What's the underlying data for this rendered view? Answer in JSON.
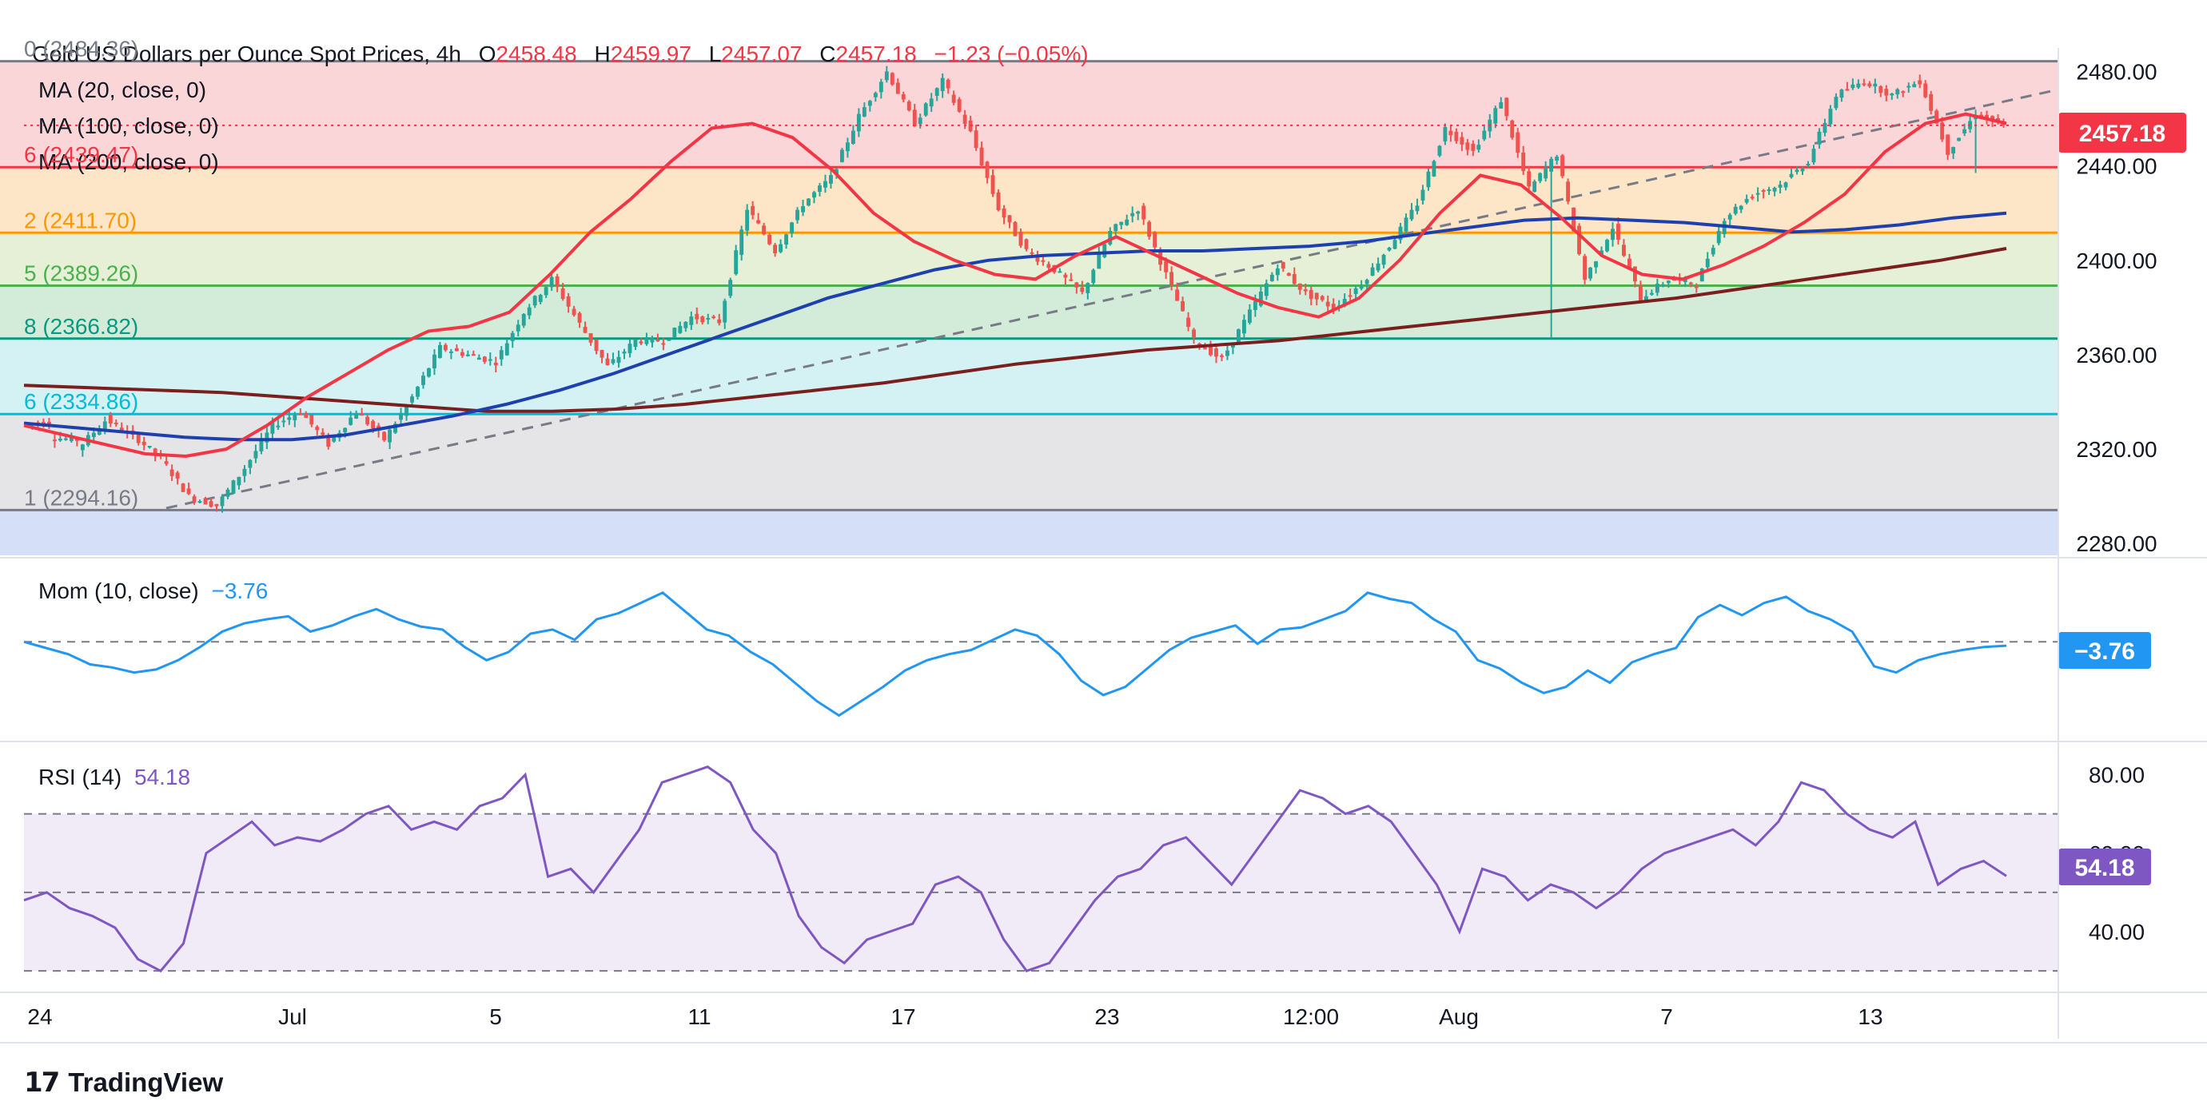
{
  "header": {
    "symbol": "Gold US Dollars per Ounce Spot Prices, 4h",
    "o_label": "O",
    "o_value": "2458.48",
    "h_label": "H",
    "h_value": "2459.97",
    "l_label": "L",
    "l_value": "2457.07",
    "c_label": "C",
    "c_value": "2457.18",
    "change": "−1.23 (−0.05%)",
    "ma20": "MA (20, close, 0)",
    "ma100": "MA (100, close, 0)",
    "ma200": "MA (200, close, 0)"
  },
  "price_tag": "2457.18",
  "fib_labels": [
    "0 (2484.36)",
    "6 (2439.47)",
    "2 (2411.70)",
    "5 (2389.26)",
    "8 (2366.82)",
    "6 (2334.86)",
    "1 (2294.16)"
  ],
  "mom_panel": {
    "title": "Mom (10, close)",
    "value": "−3.76",
    "tag": "−3.76"
  },
  "rsi_panel": {
    "title": "RSI (14)",
    "value": "54.18",
    "tag": "54.18"
  },
  "footer": {
    "logo": "17",
    "brand": "TradingView"
  },
  "colors": {
    "up": "#26a69a",
    "down": "#ef5350",
    "ma20": "#f23645",
    "ma100": "#1e40af",
    "ma200": "#7b1e1e",
    "mom": "#2196f3",
    "rsi": "#7e57c2",
    "tag_red": "#f23645",
    "tag_blue": "#2196f3",
    "tag_purple": "#7e57c2"
  },
  "chart_data": [
    {
      "type": "candlestick",
      "title": "Gold US Dollars per Ounce Spot Prices, 4h",
      "ylim": [
        2275,
        2490
      ],
      "y_ticks": [
        "2480.00",
        "2440.00",
        "2400.00",
        "2360.00",
        "2320.00",
        "2280.00"
      ],
      "x_ticks": [
        "24",
        "Jul",
        "5",
        "11",
        "17",
        "23",
        "12:00",
        "Aug",
        "7",
        "13"
      ],
      "fibonacci_levels": [
        2484.36,
        2439.47,
        2411.7,
        2389.26,
        2366.82,
        2334.86,
        2294.16
      ],
      "fib_colors": [
        "#787b86",
        "#f23645",
        "#ff9800",
        "#4caf50",
        "#089981",
        "#00bcd4",
        "#787b86"
      ],
      "fib_fills": [
        "#fbd6d8",
        "#fde5c7",
        "#e6f0d6",
        "#d3ecd9",
        "#d4f1f4",
        "#e5e5e7",
        "#d5e0f8"
      ],
      "anchors": [
        [
          2331,
          2331
        ],
        [
          2325,
          2324
        ],
        [
          2320,
          2332
        ],
        [
          2333,
          2325
        ],
        [
          2326,
          2316
        ],
        [
          2316,
          2300
        ],
        [
          2300,
          2296
        ],
        [
          2296,
          2312
        ],
        [
          2312,
          2330
        ],
        [
          2330,
          2336
        ],
        [
          2336,
          2322
        ],
        [
          2322,
          2336
        ],
        [
          2336,
          2324
        ],
        [
          2324,
          2342
        ],
        [
          2342,
          2363
        ],
        [
          2363,
          2360
        ],
        [
          2360,
          2357
        ],
        [
          2357,
          2378
        ],
        [
          2378,
          2392
        ],
        [
          2392,
          2373
        ],
        [
          2373,
          2355
        ],
        [
          2355,
          2366
        ],
        [
          2366,
          2366
        ],
        [
          2366,
          2376
        ],
        [
          2376,
          2374
        ],
        [
          2374,
          2422
        ],
        [
          2422,
          2404
        ],
        [
          2404,
          2424
        ],
        [
          2424,
          2435
        ],
        [
          2435,
          2461
        ],
        [
          2461,
          2480
        ],
        [
          2480,
          2458
        ],
        [
          2458,
          2476
        ],
        [
          2476,
          2454
        ],
        [
          2454,
          2422
        ],
        [
          2422,
          2404
        ],
        [
          2404,
          2396
        ],
        [
          2396,
          2386
        ],
        [
          2386,
          2412
        ],
        [
          2412,
          2422
        ],
        [
          2422,
          2394
        ],
        [
          2394,
          2366
        ],
        [
          2366,
          2358
        ],
        [
          2358,
          2378
        ],
        [
          2378,
          2398
        ],
        [
          2398,
          2386
        ],
        [
          2386,
          2380
        ],
        [
          2380,
          2390
        ],
        [
          2390,
          2406
        ],
        [
          2406,
          2424
        ],
        [
          2424,
          2456
        ],
        [
          2456,
          2446
        ],
        [
          2446,
          2468
        ],
        [
          2468,
          2430
        ],
        [
          2430,
          2445
        ],
        [
          2445,
          2392
        ],
        [
          2392,
          2414
        ],
        [
          2414,
          2384
        ],
        [
          2384,
          2392
        ],
        [
          2392,
          2390
        ],
        [
          2390,
          2418
        ],
        [
          2418,
          2428
        ],
        [
          2428,
          2432
        ],
        [
          2432,
          2442
        ],
        [
          2442,
          2470
        ],
        [
          2470,
          2476
        ],
        [
          2476,
          2470
        ],
        [
          2470,
          2476
        ],
        [
          2476,
          2446
        ],
        [
          2446,
          2462
        ],
        [
          2462,
          2457
        ]
      ],
      "ma20": [
        2330,
        2326,
        2322,
        2318,
        2317,
        2320,
        2330,
        2342,
        2352,
        2362,
        2370,
        2372,
        2378,
        2394,
        2412,
        2426,
        2442,
        2456,
        2458,
        2452,
        2438,
        2420,
        2408,
        2400,
        2394,
        2392,
        2402,
        2410,
        2402,
        2394,
        2386,
        2380,
        2376,
        2384,
        2400,
        2420,
        2436,
        2432,
        2418,
        2402,
        2394,
        2392,
        2398,
        2406,
        2416,
        2428,
        2446,
        2458,
        2462,
        2458
      ],
      "ma100": [
        2331,
        2329,
        2327,
        2325,
        2324,
        2324,
        2326,
        2330,
        2334,
        2339,
        2345,
        2352,
        2360,
        2368,
        2376,
        2384,
        2390,
        2396,
        2400,
        2402,
        2403,
        2404,
        2404,
        2405,
        2406,
        2408,
        2411,
        2414,
        2417,
        2418,
        2417,
        2416,
        2414,
        2412,
        2413,
        2415,
        2418,
        2420
      ],
      "ma200": [
        2347,
        2346,
        2345,
        2344,
        2342,
        2340,
        2338,
        2336,
        2336,
        2337,
        2339,
        2342,
        2345,
        2348,
        2352,
        2356,
        2359,
        2362,
        2364,
        2366,
        2369,
        2372,
        2375,
        2378,
        2381,
        2384,
        2388,
        2392,
        2396,
        2400,
        2405
      ]
    },
    {
      "type": "line",
      "title": "Mom (10, close)",
      "series": [
        {
          "name": "Mom (10, close)",
          "values": [
            0,
            -6,
            -12,
            -22,
            -25,
            -30,
            -27,
            -18,
            -5,
            10,
            18,
            22,
            25,
            10,
            16,
            25,
            32,
            22,
            15,
            12,
            -5,
            -18,
            -10,
            8,
            12,
            2,
            22,
            28,
            38,
            48,
            30,
            12,
            6,
            -10,
            -22,
            -40,
            -58,
            -72,
            -58,
            -44,
            -28,
            -18,
            -12,
            -8,
            2,
            12,
            6,
            -12,
            -38,
            -52,
            -44,
            -26,
            -8,
            4,
            10,
            16,
            -2,
            12,
            14,
            22,
            30,
            48,
            42,
            38,
            22,
            10,
            -18,
            -26,
            -40,
            -50,
            -44,
            -28,
            -40,
            -20,
            -12,
            -6,
            24,
            36,
            26,
            38,
            44,
            30,
            22,
            10,
            -24,
            -30,
            -18,
            -12,
            -8,
            -5,
            -3.76
          ]
        }
      ],
      "ylim": [
        -95,
        65
      ],
      "zero_line": 0
    },
    {
      "type": "line",
      "title": "RSI (14)",
      "series": [
        {
          "name": "RSI (14)",
          "values": [
            48,
            50,
            46,
            44,
            41,
            33,
            30,
            37,
            60,
            64,
            68,
            62,
            64,
            63,
            66,
            70,
            72,
            66,
            68,
            66,
            72,
            74,
            80,
            54,
            56,
            50,
            58,
            66,
            78,
            80,
            82,
            78,
            66,
            60,
            44,
            36,
            32,
            38,
            40,
            42,
            52,
            54,
            50,
            38,
            30,
            32,
            40,
            48,
            54,
            56,
            62,
            64,
            58,
            52,
            60,
            68,
            76,
            74,
            70,
            72,
            68,
            60,
            52,
            40,
            56,
            54,
            48,
            52,
            50,
            46,
            50,
            56,
            60,
            62,
            64,
            66,
            62,
            68,
            78,
            76,
            70,
            66,
            64,
            68,
            52,
            56,
            58,
            54.18
          ]
        }
      ],
      "ylim": [
        28,
        86
      ],
      "y_ticks": [
        "80.00",
        "60.00",
        "40.00"
      ],
      "bands": [
        70,
        50,
        30
      ]
    }
  ]
}
